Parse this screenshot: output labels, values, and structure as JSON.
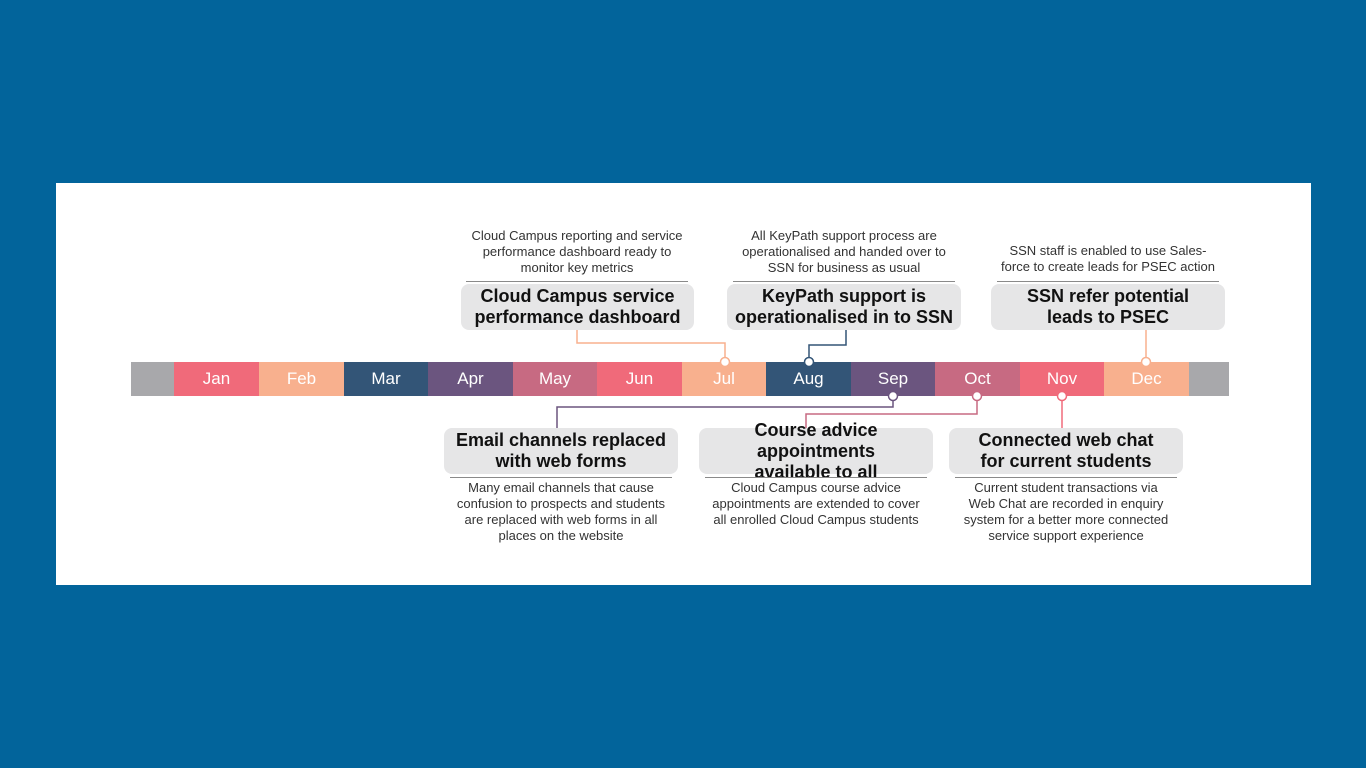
{
  "months": [
    {
      "label": "Jan",
      "color": "#f06a7a"
    },
    {
      "label": "Feb",
      "color": "#f8b08e"
    },
    {
      "label": "Mar",
      "color": "#335577"
    },
    {
      "label": "Apr",
      "color": "#6b557f"
    },
    {
      "label": "May",
      "color": "#c76a82"
    },
    {
      "label": "Jun",
      "color": "#f06a7a"
    },
    {
      "label": "Jul",
      "color": "#f8b08e"
    },
    {
      "label": "Aug",
      "color": "#335577"
    },
    {
      "label": "Sep",
      "color": "#6b557f"
    },
    {
      "label": "Oct",
      "color": "#c76a82"
    },
    {
      "label": "Nov",
      "color": "#f06a7a"
    },
    {
      "label": "Dec",
      "color": "#f8b08e"
    }
  ],
  "milestones_above": [
    {
      "title": "Cloud Campus service\nperformance dashboard",
      "description": "Cloud Campus reporting and service\nperformance dashboard ready to\nmonitor key metrics",
      "month": "Jul",
      "color": "#f8b08e"
    },
    {
      "title": "KeyPath support is\noperationalised in to SSN",
      "description": "All KeyPath support process are\noperationalised and handed over to\nSSN for business as usual",
      "month": "Aug",
      "color": "#335577"
    },
    {
      "title": "SSN refer potential\nleads to PSEC",
      "description": "SSN staff is enabled to use Sales-\nforce to create leads for PSEC action",
      "month": "Dec",
      "color": "#f8b08e"
    }
  ],
  "milestones_below": [
    {
      "title": "Email channels replaced\nwith web forms",
      "description": "Many email channels that cause\nconfusion to prospects and students\nare replaced with web forms in all\nplaces on the website",
      "month": "Sep",
      "color": "#6b557f"
    },
    {
      "title": "Course advice appointments\navailable to all",
      "description": "Cloud Campus course advice\nappointments are extended to cover\nall enrolled Cloud Campus students",
      "month": "Oct",
      "color": "#c76a82"
    },
    {
      "title": "Connected web chat\nfor current students",
      "description": "Current student transactions via\nWeb Chat are recorded in enquiry\nsystem for a better more connected\nservice support experience",
      "month": "Nov",
      "color": "#f06a7a"
    }
  ]
}
